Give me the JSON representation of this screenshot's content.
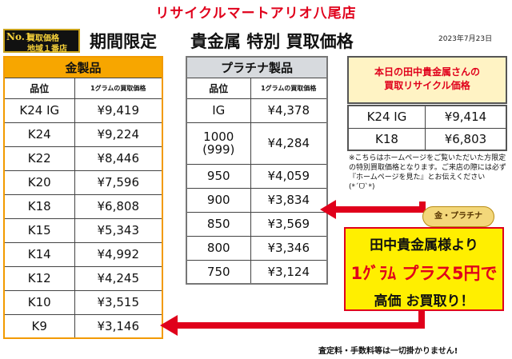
{
  "store_title": "リサイクルマートアリオ八尾店",
  "badge": {
    "no1": "No.1",
    "line1": "買取価格",
    "line2": "地域１番店"
  },
  "headline": "期間限定　　貴金属 特別 買取価格",
  "date": "2023年7月23日",
  "gold": {
    "title": "金製品",
    "col_grade": "品位",
    "col_price": "1グラムの買取価格",
    "rows": [
      {
        "grade": "K24 IG",
        "price": "¥9,419"
      },
      {
        "grade": "K24",
        "price": "¥9,224"
      },
      {
        "grade": "K22",
        "price": "¥8,446"
      },
      {
        "grade": "K20",
        "price": "¥7,596"
      },
      {
        "grade": "K18",
        "price": "¥6,808"
      },
      {
        "grade": "K15",
        "price": "¥5,343"
      },
      {
        "grade": "K14",
        "price": "¥4,992"
      },
      {
        "grade": "K12",
        "price": "¥4,245"
      },
      {
        "grade": "K10",
        "price": "¥3,515"
      },
      {
        "grade": "K9",
        "price": "¥3,146"
      }
    ]
  },
  "platinum": {
    "title": "プラチナ製品",
    "col_grade": "品位",
    "col_price": "1グラムの買取価格",
    "rows": [
      {
        "grade": "IG",
        "price": "¥4,378"
      },
      {
        "grade": "1000\n(999)",
        "price": "¥4,284"
      },
      {
        "grade": "950",
        "price": "¥4,059"
      },
      {
        "grade": "900",
        "price": "¥3,834"
      },
      {
        "grade": "850",
        "price": "¥3,569"
      },
      {
        "grade": "800",
        "price": "¥3,346"
      },
      {
        "grade": "750",
        "price": "¥3,124"
      }
    ]
  },
  "today": {
    "title_line1": "本日の田中貴金属さんの",
    "title_line2": "買取リサイクル価格",
    "rows": [
      {
        "grade": "K24 IG",
        "price": "¥9,414"
      },
      {
        "grade": "K18",
        "price": "¥6,803"
      }
    ]
  },
  "note": "※こちらはホームページをご覧いただいた方限定の特別買取価格となります。ご来店の際には必ず『ホームページを見た』とお伝えください(*ˊᗜˋ*)",
  "coin_label": "金・プラチナ",
  "promo": {
    "line1": "田中貴金属様より",
    "line2": "1ｸﾞﾗﾑ プラス5円で",
    "line3": "高価 お買取り！"
  },
  "footer": "査定料・手数料等は一切掛かりません!",
  "colors": {
    "accent_red": "#e0001b",
    "gold_header": "#f7a600",
    "platinum_header": "#d7dade",
    "promo_bg": "#ffef00"
  }
}
